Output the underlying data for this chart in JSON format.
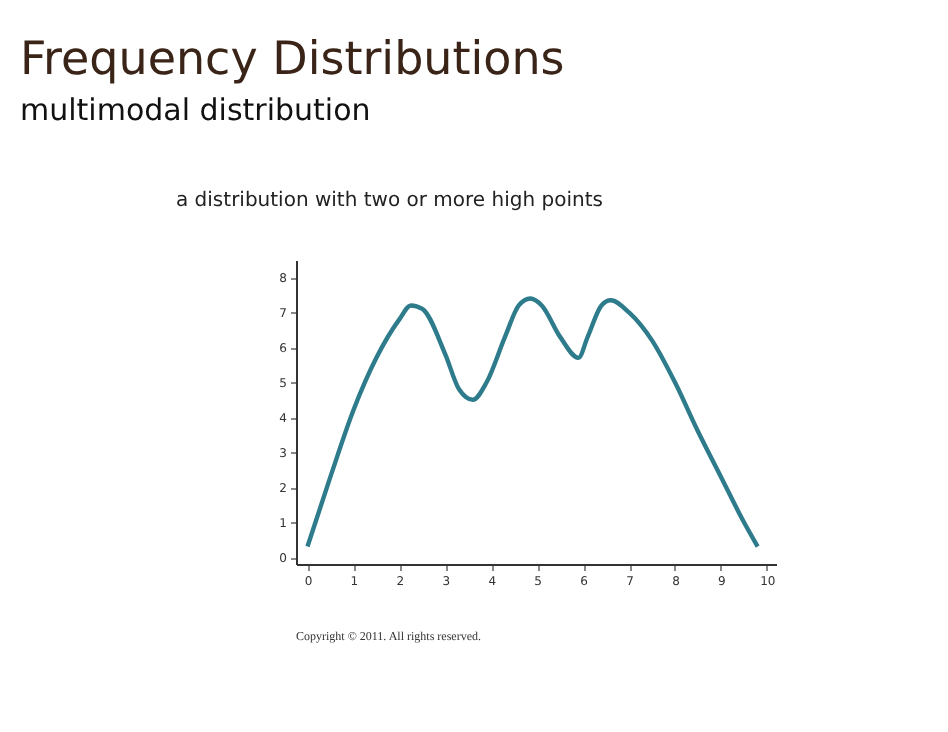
{
  "chart_data": {
    "type": "line",
    "title": "Frequency Distributions",
    "subtitle": "multimodal distribution",
    "annotations": [
      "a distribution with two or more high points",
      "Copyright © 2011. All rights reserved."
    ],
    "x": [
      0,
      0.5,
      1,
      1.5,
      2,
      2.25,
      2.5,
      3,
      3.3,
      3.6,
      3.9,
      4.3,
      4.6,
      4.85,
      5.1,
      5.5,
      5.9,
      6.1,
      6.4,
      6.6,
      7,
      7.5,
      8,
      8.5,
      9,
      9.5,
      9.8
    ],
    "series": [
      {
        "color": "#2e7b8c",
        "values": [
          0.3,
          2.3,
          4.2,
          5.7,
          6.8,
          7.2,
          7.1,
          5.8,
          4.8,
          4.5,
          5,
          6.3,
          7.2,
          7.4,
          7.2,
          6.3,
          5.7,
          6.3,
          7.2,
          7.35,
          7,
          6.2,
          5,
          3.6,
          2.3,
          1,
          0.3
        ]
      }
    ],
    "xlim": [
      -0.25,
      10.2
    ],
    "ylim": [
      -0.2,
      8.5
    ],
    "xticks": [
      0,
      1,
      2,
      3,
      4,
      5,
      6,
      7,
      8,
      9,
      10
    ],
    "yticks": [
      0,
      1,
      2,
      3,
      4,
      5,
      6,
      7,
      8
    ],
    "grid": false,
    "legend": false,
    "marker": "none",
    "line_style": "solid"
  }
}
